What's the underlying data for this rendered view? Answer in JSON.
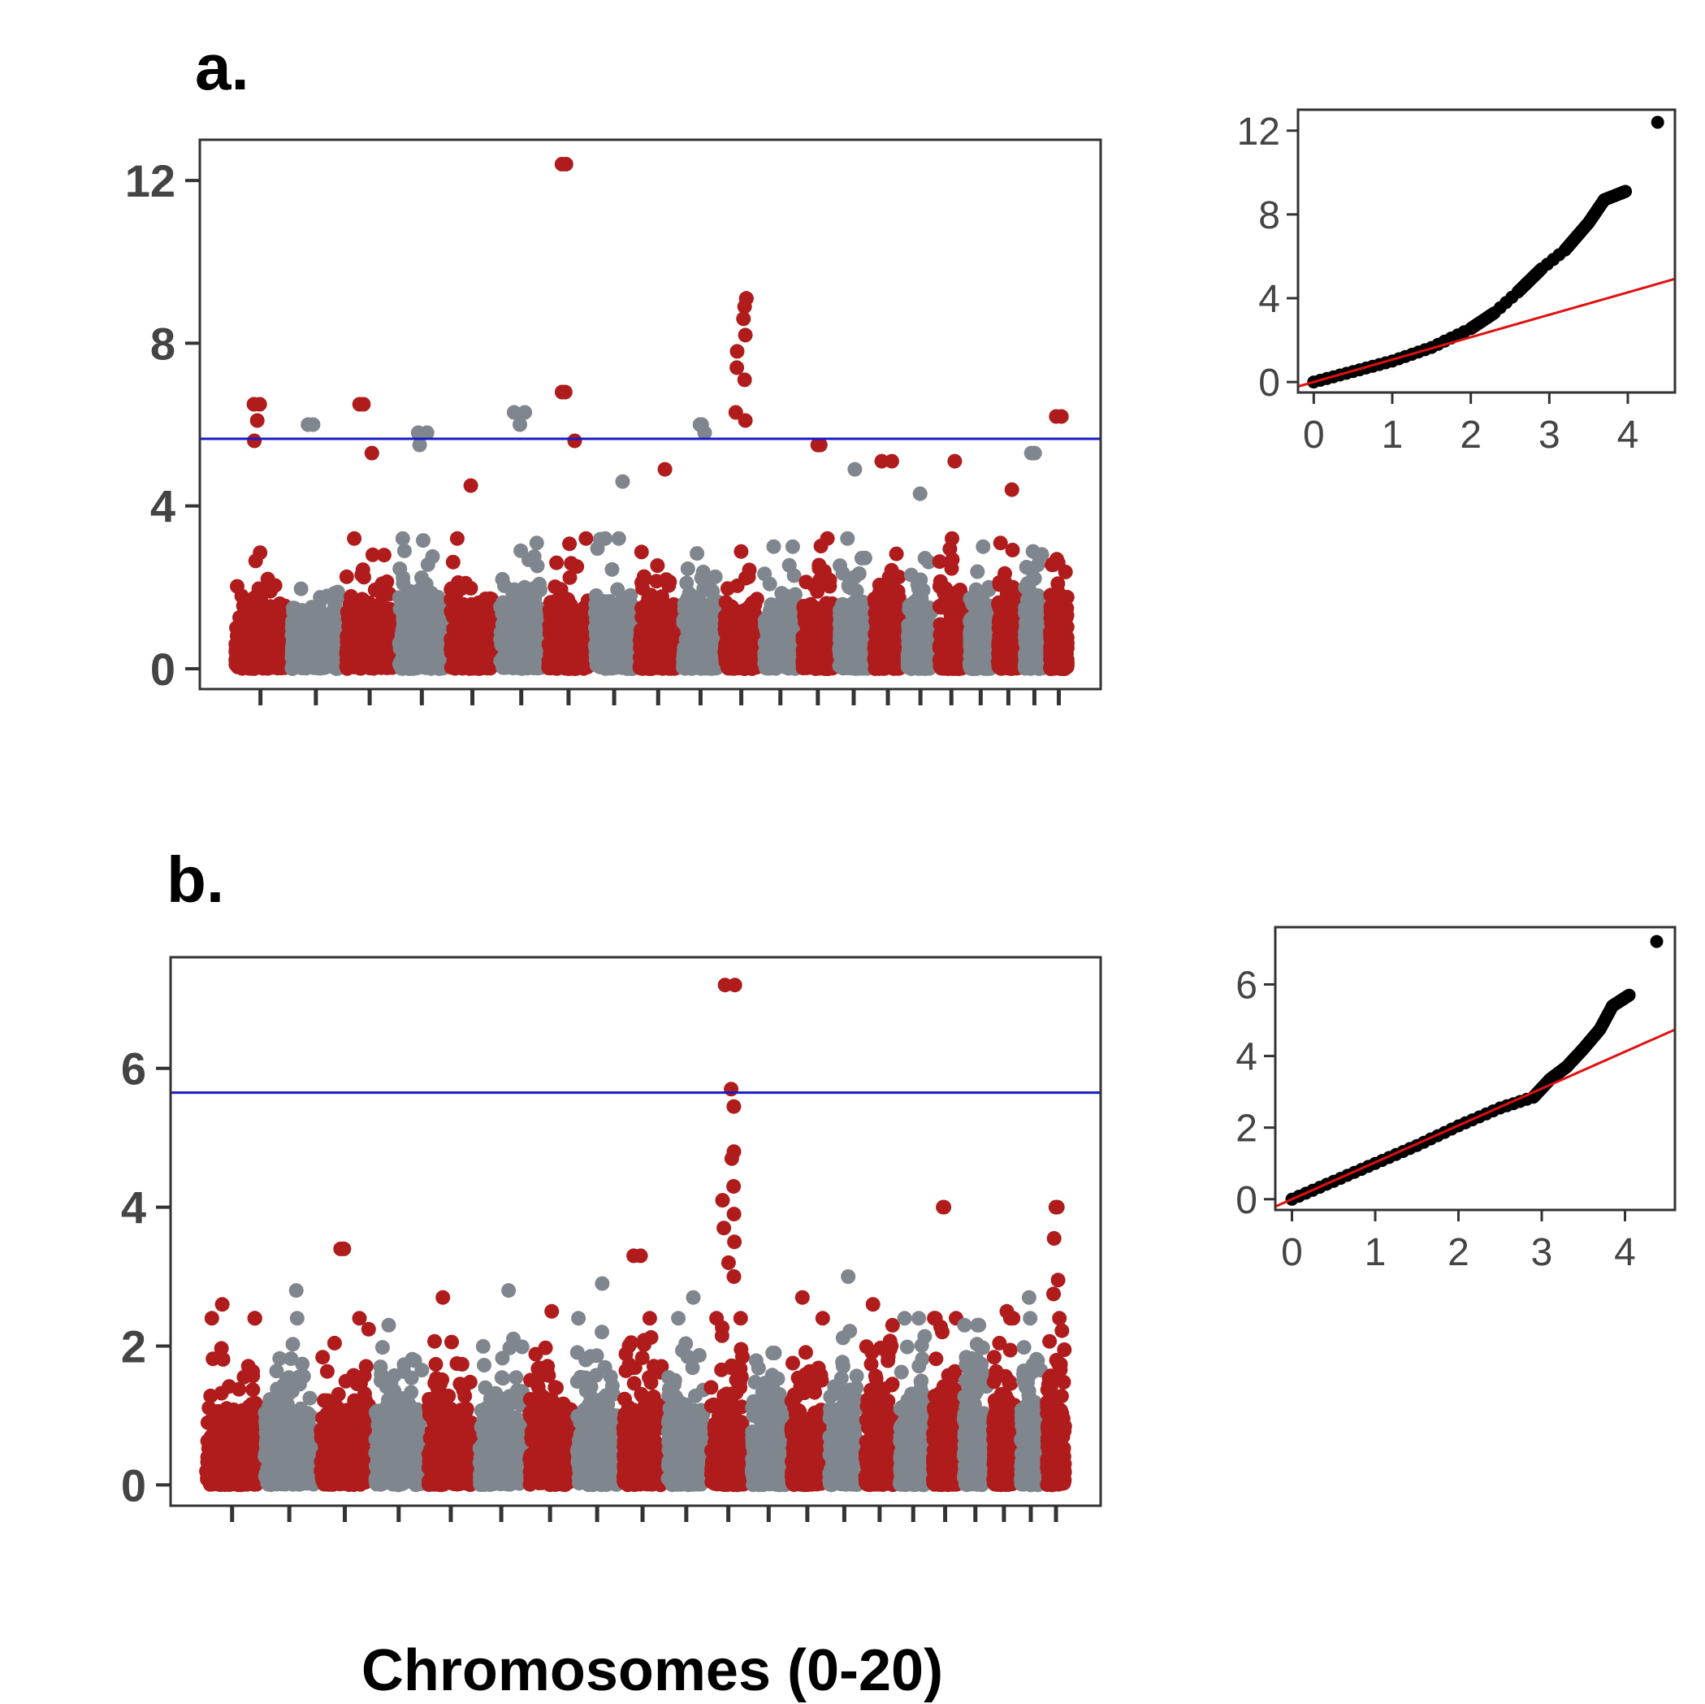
{
  "figure": {
    "xlabel": "Chromosomes (0-20)",
    "colors": {
      "odd_chrom": "#b01b1c",
      "even_chrom": "#7f868d",
      "threshold": "#1a1ac8",
      "qq_points": "#000000",
      "qq_line": "#e01010",
      "frame": "#333333"
    }
  },
  "chart_data": [
    {
      "panel": "a.",
      "type": "scatter",
      "subtype": "manhattan",
      "xlabel": "Chromosomes (0-20)",
      "ylabel": "",
      "ylim": [
        -0.5,
        13
      ],
      "yticks": [
        0,
        4,
        8,
        12
      ],
      "chromosomes": 21,
      "threshold": 5.65,
      "colors_alternate": [
        "#b01b1c",
        "#7f868d"
      ],
      "chromosome_max": [
        6.5,
        6.0,
        6.5,
        5.8,
        4.5,
        6.3,
        12.4,
        4.6,
        4.9,
        6.0,
        9.1,
        3.0,
        5.5,
        4.9,
        5.1,
        4.3,
        5.1,
        3.0,
        4.4,
        5.3,
        6.2
      ],
      "notable_points": [
        {
          "chrom": 0,
          "y": 6.5
        },
        {
          "chrom": 0,
          "y": 6.1
        },
        {
          "chrom": 0,
          "y": 5.6
        },
        {
          "chrom": 1,
          "y": 6.0
        },
        {
          "chrom": 2,
          "y": 6.5
        },
        {
          "chrom": 2,
          "y": 5.3
        },
        {
          "chrom": 3,
          "y": 5.8
        },
        {
          "chrom": 3,
          "y": 5.5
        },
        {
          "chrom": 5,
          "y": 6.3
        },
        {
          "chrom": 5,
          "y": 6.0
        },
        {
          "chrom": 6,
          "y": 12.4
        },
        {
          "chrom": 6,
          "y": 6.8
        },
        {
          "chrom": 6,
          "y": 6.8
        },
        {
          "chrom": 6,
          "y": 5.6
        },
        {
          "chrom": 9,
          "y": 6.0
        },
        {
          "chrom": 9,
          "y": 5.8
        },
        {
          "chrom": 10,
          "y": 9.1
        },
        {
          "chrom": 10,
          "y": 8.9
        },
        {
          "chrom": 10,
          "y": 8.6
        },
        {
          "chrom": 10,
          "y": 8.2
        },
        {
          "chrom": 10,
          "y": 7.8
        },
        {
          "chrom": 10,
          "y": 7.4
        },
        {
          "chrom": 10,
          "y": 7.1
        },
        {
          "chrom": 10,
          "y": 6.3
        },
        {
          "chrom": 10,
          "y": 6.1
        },
        {
          "chrom": 12,
          "y": 5.5
        },
        {
          "chrom": 14,
          "y": 5.1
        },
        {
          "chrom": 19,
          "y": 5.3
        },
        {
          "chrom": 20,
          "y": 6.2
        }
      ],
      "qq": {
        "type": "scatter",
        "xlim": [
          -0.2,
          4.6
        ],
        "ylim": [
          -0.5,
          13
        ],
        "xticks": [
          0,
          1,
          2,
          3,
          4
        ],
        "yticks": [
          0,
          4,
          8,
          12
        ],
        "expected_line": {
          "intercept": 0.0,
          "slope": 1.07
        },
        "points": [
          [
            0.0,
            0.0
          ],
          [
            0.5,
            0.5
          ],
          [
            1.0,
            1.0
          ],
          [
            1.5,
            1.65
          ],
          [
            2.0,
            2.55
          ],
          [
            2.3,
            3.3
          ],
          [
            2.6,
            4.3
          ],
          [
            2.9,
            5.4
          ],
          [
            3.2,
            6.3
          ],
          [
            3.5,
            7.6
          ],
          [
            3.7,
            8.7
          ],
          [
            3.97,
            9.1
          ],
          [
            4.38,
            12.4
          ]
        ]
      }
    },
    {
      "panel": "b.",
      "type": "scatter",
      "subtype": "manhattan",
      "xlabel": "Chromosomes (0-20)",
      "ylabel": "",
      "ylim": [
        -0.3,
        7.6
      ],
      "yticks": [
        0,
        2,
        4,
        6
      ],
      "chromosomes": 21,
      "threshold": 5.65,
      "colors_alternate": [
        "#b01b1c",
        "#7f868d"
      ],
      "chromosome_max": [
        2.6,
        2.8,
        3.4,
        2.3,
        2.7,
        2.8,
        2.5,
        2.9,
        3.3,
        2.7,
        7.2,
        1.9,
        2.7,
        3.0,
        2.6,
        2.4,
        4.0,
        2.3,
        2.5,
        2.7,
        4.0
      ],
      "notable_points": [
        {
          "chrom": 10,
          "y": 7.2
        },
        {
          "chrom": 10,
          "y": 5.7
        },
        {
          "chrom": 10,
          "y": 5.45
        },
        {
          "chrom": 10,
          "y": 4.8
        },
        {
          "chrom": 10,
          "y": 4.7
        },
        {
          "chrom": 10,
          "y": 4.3
        },
        {
          "chrom": 10,
          "y": 4.1
        },
        {
          "chrom": 10,
          "y": 3.9
        },
        {
          "chrom": 10,
          "y": 3.7
        },
        {
          "chrom": 10,
          "y": 3.5
        },
        {
          "chrom": 10,
          "y": 3.2
        },
        {
          "chrom": 10,
          "y": 3.0
        },
        {
          "chrom": 2,
          "y": 3.4
        },
        {
          "chrom": 8,
          "y": 3.3
        },
        {
          "chrom": 16,
          "y": 4.0
        },
        {
          "chrom": 20,
          "y": 4.0
        },
        {
          "chrom": 20,
          "y": 3.55
        },
        {
          "chrom": 20,
          "y": 2.95
        },
        {
          "chrom": 20,
          "y": 2.75
        }
      ],
      "qq": {
        "type": "scatter",
        "xlim": [
          -0.2,
          4.6
        ],
        "ylim": [
          -0.3,
          7.6
        ],
        "xticks": [
          0,
          1,
          2,
          3,
          4
        ],
        "yticks": [
          0,
          2,
          4,
          6
        ],
        "expected_line": {
          "intercept": 0.0,
          "slope": 1.03
        },
        "points": [
          [
            0.0,
            0.0
          ],
          [
            0.5,
            0.5
          ],
          [
            1.0,
            1.0
          ],
          [
            1.5,
            1.5
          ],
          [
            2.0,
            2.05
          ],
          [
            2.5,
            2.55
          ],
          [
            2.9,
            2.85
          ],
          [
            3.0,
            3.1
          ],
          [
            3.1,
            3.35
          ],
          [
            3.3,
            3.7
          ],
          [
            3.5,
            4.2
          ],
          [
            3.7,
            4.75
          ],
          [
            3.85,
            5.4
          ],
          [
            4.05,
            5.7
          ],
          [
            4.38,
            7.2
          ]
        ]
      }
    }
  ]
}
